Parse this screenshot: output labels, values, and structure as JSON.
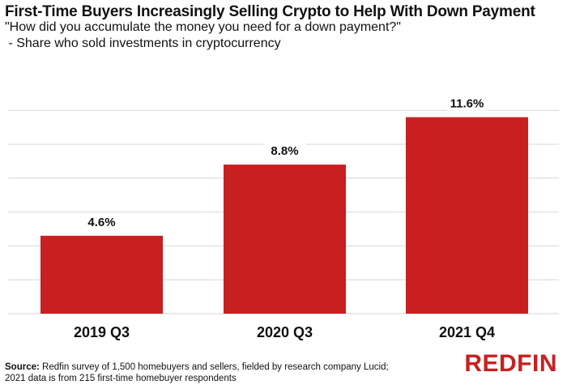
{
  "chart_data": {
    "type": "bar",
    "title": "First-Time Buyers Increasingly Selling Crypto to Help With Down Payment",
    "subtitle_lines": [
      "\"How did you accumulate the money you need for a down payment?\"",
      " - Share who sold investments in cryptocurrency"
    ],
    "categories": [
      "2019 Q3",
      "2020 Q3",
      "2021 Q4"
    ],
    "values": [
      4.6,
      8.8,
      11.6
    ],
    "data_labels": [
      "4.6%",
      "8.8%",
      "11.6%"
    ],
    "xlabel": "",
    "ylabel": "",
    "ylim": [
      0,
      12
    ],
    "ygrid_step": 2,
    "grid": true,
    "bar_color": "#c82021",
    "grid_color": "#e3e3e3"
  },
  "footer": {
    "source_label": "Source:",
    "source_text": " Redfin survey of 1,500 homebuyers and sellers, fielded by research company Lucid;",
    "source_line2": "2021 data is from 215 first-time homebuyer respondents"
  },
  "logo": "REDFIN"
}
